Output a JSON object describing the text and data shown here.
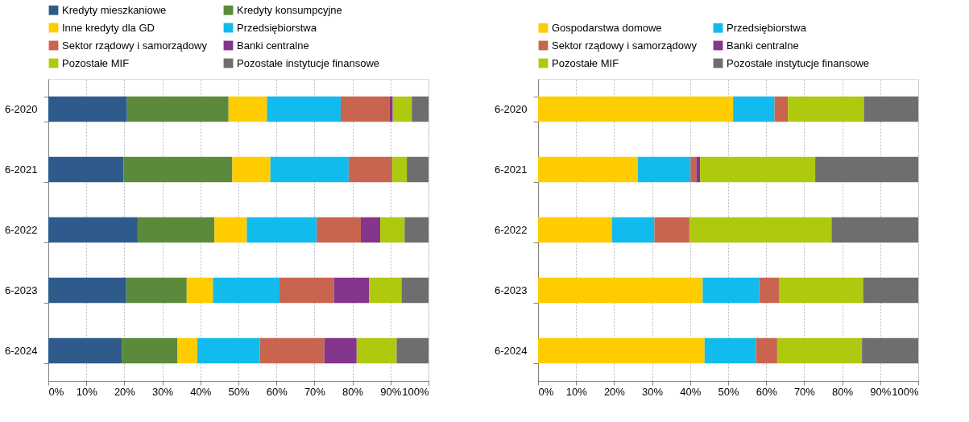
{
  "chart_data": [
    {
      "type": "bar",
      "orientation": "horizontal",
      "stacked": true,
      "legend": "top",
      "grid": "x",
      "categories": [
        "6-2020",
        "6-2021",
        "6-2022",
        "6-2023",
        "6-2024"
      ],
      "xlim": [
        0,
        100
      ],
      "xticks": [
        {
          "value": 0,
          "label": "0%"
        },
        {
          "value": 10,
          "label": "10%"
        },
        {
          "value": 20,
          "label": "20%"
        },
        {
          "value": 30,
          "label": "30%"
        },
        {
          "value": 40,
          "label": "40%"
        },
        {
          "value": 50,
          "label": "50%"
        },
        {
          "value": 60,
          "label": "60%"
        },
        {
          "value": 70,
          "label": "70%"
        },
        {
          "value": 80,
          "label": "80%"
        },
        {
          "value": 90,
          "label": "90%"
        },
        {
          "value": 100,
          "label": "100%"
        }
      ],
      "series": [
        {
          "name": "Kredyty mieszkaniowe",
          "color": "#2e5b8c",
          "values": [
            20.7,
            19.8,
            23.5,
            20.5,
            19.3
          ]
        },
        {
          "name": "Kredyty konsumpcyjne",
          "color": "#5b8a3c",
          "values": [
            26.7,
            28.6,
            20.2,
            15.9,
            14.6
          ]
        },
        {
          "name": "Inne kredyty dla GD",
          "color": "#ffcc00",
          "values": [
            10.1,
            10.0,
            8.5,
            6.9,
            5.3
          ]
        },
        {
          "name": "Przedsiębiorstwa",
          "color": "#12bbed",
          "values": [
            19.4,
            20.6,
            18.4,
            17.5,
            16.4
          ]
        },
        {
          "name": "Sektor rządowy i samorządowy",
          "color": "#c9654e",
          "values": [
            12.8,
            11.1,
            11.6,
            14.3,
            17.0
          ]
        },
        {
          "name": "Banki centralne",
          "color": "#84358c",
          "values": [
            0.9,
            0.3,
            5.1,
            9.3,
            8.5
          ]
        },
        {
          "name": "Pozostałe MIF",
          "color": "#afc90f",
          "values": [
            5.0,
            3.9,
            6.4,
            8.5,
            10.5
          ]
        },
        {
          "name": "Pozostałe instytucje finansowe",
          "color": "#6e6e6e",
          "values": [
            4.4,
            5.7,
            6.3,
            7.1,
            8.4
          ]
        }
      ]
    },
    {
      "type": "bar",
      "orientation": "horizontal",
      "stacked": true,
      "legend": "top",
      "grid": "x",
      "categories": [
        "6-2020",
        "6-2021",
        "6-2022",
        "6-2023",
        "6-2024"
      ],
      "xlim": [
        0,
        100
      ],
      "xticks": [
        {
          "value": 0,
          "label": "0%"
        },
        {
          "value": 10,
          "label": "10%"
        },
        {
          "value": 20,
          "label": "20%"
        },
        {
          "value": 30,
          "label": "30%"
        },
        {
          "value": 40,
          "label": "40%"
        },
        {
          "value": 50,
          "label": "50%"
        },
        {
          "value": 60,
          "label": "60%"
        },
        {
          "value": 70,
          "label": "70%"
        },
        {
          "value": 80,
          "label": "80%"
        },
        {
          "value": 90,
          "label": "90%"
        },
        {
          "value": 100,
          "label": "100%"
        }
      ],
      "series": [
        {
          "name": "Gospodarstwa domowe",
          "color": "#ffcc00",
          "values": [
            51.3,
            26.2,
            19.4,
            43.3,
            43.8
          ]
        },
        {
          "name": "Przedsiębiorstwa",
          "color": "#12bbed",
          "values": [
            10.9,
            13.9,
            11.2,
            14.9,
            13.5
          ]
        },
        {
          "name": "Sektor rządowy i samorządowy",
          "color": "#c9654e",
          "values": [
            3.5,
            1.5,
            9.2,
            5.3,
            5.6
          ]
        },
        {
          "name": "Banki centralne",
          "color": "#84358c",
          "values": [
            null,
            1.0,
            null,
            null,
            null
          ]
        },
        {
          "name": "Pozostałe MIF",
          "color": "#afc90f",
          "values": [
            20.0,
            30.3,
            37.4,
            22.0,
            22.3
          ]
        },
        {
          "name": "Pozostałe instytucje finansowe",
          "color": "#6e6e6e",
          "values": [
            14.3,
            27.1,
            22.8,
            14.5,
            14.8
          ]
        }
      ]
    }
  ]
}
